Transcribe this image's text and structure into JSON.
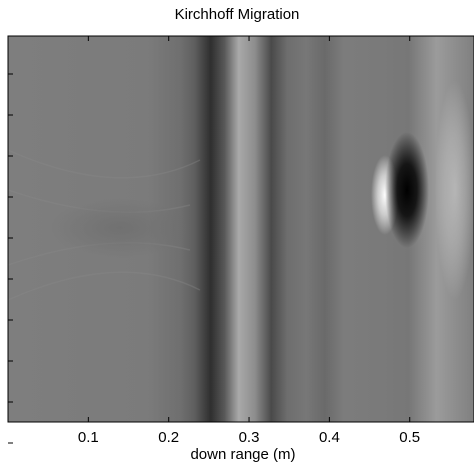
{
  "chart_data": {
    "type": "heatmap",
    "title": "Kirchhoff Migration",
    "xlabel": "down range (m)",
    "ylabel": "",
    "colormap": "gray",
    "xlim": [
      0.0,
      0.58
    ],
    "x_ticks": [
      0.1,
      0.2,
      0.3,
      0.4,
      0.5
    ],
    "x_tick_labels": [
      "0.1",
      "0.2",
      "0.3",
      "0.4",
      "0.5"
    ],
    "y_tick_count": 10,
    "y_tick_labels": [],
    "features": [
      {
        "kind": "vertical_band",
        "x": 0.255,
        "polarity": "dark"
      },
      {
        "kind": "vertical_band",
        "x": 0.285,
        "polarity": "bright"
      },
      {
        "kind": "vertical_band",
        "x": 0.315,
        "polarity": "dark"
      },
      {
        "kind": "vertical_band",
        "x": 0.37,
        "polarity": "dark"
      },
      {
        "kind": "vertical_band",
        "x": 0.52,
        "polarity": "bright"
      },
      {
        "kind": "point_target",
        "x": 0.49,
        "polarity": "dark"
      },
      {
        "kind": "point_target",
        "x": 0.465,
        "polarity": "bright"
      }
    ]
  }
}
